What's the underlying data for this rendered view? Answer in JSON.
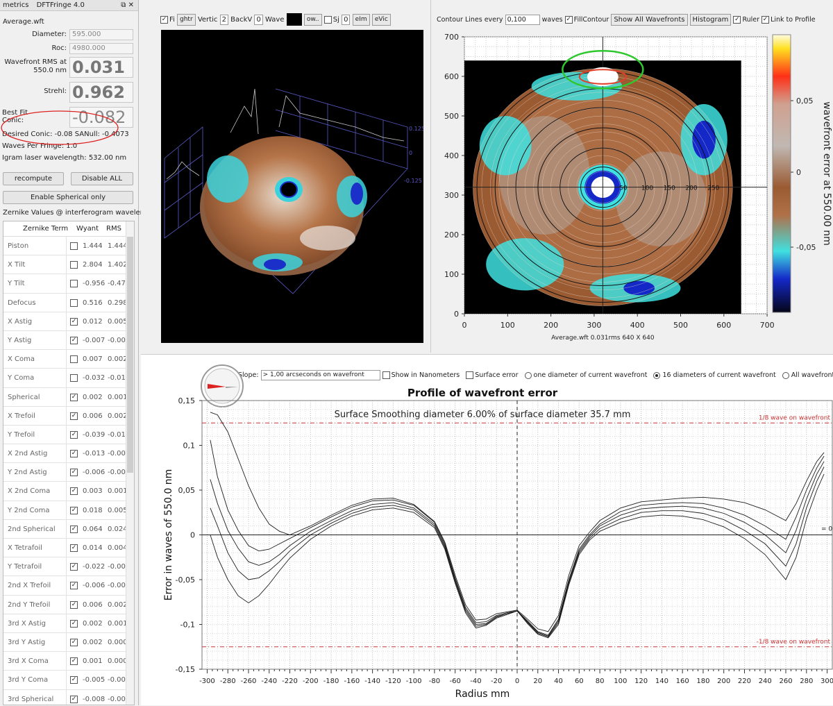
{
  "left": {
    "tab_metrics": "metrics",
    "app_title": "DFTFringe 4.0",
    "file_name": "Average.wft",
    "diameter_label": "Diameter:",
    "diameter_value": "595.000",
    "roc_label": "Roc:",
    "roc_value": "4980.000",
    "rms_label_1": "Wavefront RMS at",
    "rms_label_2": "550.0 nm",
    "rms_value": "0.031",
    "strehl_label": "Strehl:",
    "strehl_value": "0.962",
    "bestfit_label_1": "Best Fit",
    "bestfit_label_2": "Conic:",
    "bestfit_value": "-0.082",
    "desired_conic": "Desired Conic:  -0.08 SANull:  -0.4073",
    "waves_per_fringe": "Waves Per Fringe:  1.0",
    "laser_wavelength": "Igram laser wavelength: 532.00 nm",
    "recompute_label": "recompute",
    "disable_all_label": "Disable ALL",
    "spherical_only_label": "Enable Spherical only",
    "zernike_caption": "Zernike Values @ interferogram wavelength",
    "table_headers": [
      "Zernike Term",
      "Wyant",
      "RMS"
    ],
    "zernike_rows": [
      {
        "name": "Piston",
        "checked": false,
        "wyant": "1.444",
        "rms": "1.444"
      },
      {
        "name": "X Tilt",
        "checked": false,
        "wyant": "2.804",
        "rms": "1.402"
      },
      {
        "name": "Y Tilt",
        "checked": false,
        "wyant": "-0.956",
        "rms": "-0.47"
      },
      {
        "name": "Defocus",
        "checked": false,
        "wyant": "0.516",
        "rms": "0.298"
      },
      {
        "name": "X Astig",
        "checked": true,
        "wyant": "0.012",
        "rms": "0.005"
      },
      {
        "name": "Y Astig",
        "checked": true,
        "wyant": "-0.007",
        "rms": "-0.00"
      },
      {
        "name": "X Coma",
        "checked": false,
        "wyant": "0.007",
        "rms": "0.002"
      },
      {
        "name": "Y Coma",
        "checked": false,
        "wyant": "-0.032",
        "rms": "-0.01"
      },
      {
        "name": "Spherical",
        "checked": true,
        "wyant": "0.002",
        "rms": "0.001"
      },
      {
        "name": "X Trefoil",
        "checked": true,
        "wyant": "0.006",
        "rms": "0.002"
      },
      {
        "name": "Y Trefoil",
        "checked": true,
        "wyant": "-0.039",
        "rms": "-0.01"
      },
      {
        "name": "X 2nd Astig",
        "checked": true,
        "wyant": "-0.013",
        "rms": "-0.00"
      },
      {
        "name": "Y 2nd Astig",
        "checked": true,
        "wyant": "-0.006",
        "rms": "-0.00"
      },
      {
        "name": "X 2nd Coma",
        "checked": true,
        "wyant": "0.003",
        "rms": "0.001"
      },
      {
        "name": "Y 2nd Coma",
        "checked": true,
        "wyant": "0.018",
        "rms": "0.005"
      },
      {
        "name": "2nd Spherical",
        "checked": true,
        "wyant": "0.064",
        "rms": "0.024"
      },
      {
        "name": "X Tetrafoil",
        "checked": true,
        "wyant": "0.014",
        "rms": "0.004"
      },
      {
        "name": "Y Tetrafoil",
        "checked": true,
        "wyant": "-0.022",
        "rms": "-0.00"
      },
      {
        "name": "2nd X Trefoil",
        "checked": true,
        "wyant": "-0.006",
        "rms": "-0.00"
      },
      {
        "name": "2nd Y Trefoil",
        "checked": true,
        "wyant": "0.006",
        "rms": "0.002"
      },
      {
        "name": "3rd X Astig",
        "checked": true,
        "wyant": "0.002",
        "rms": "0.001"
      },
      {
        "name": "3rd Y Astig",
        "checked": true,
        "wyant": "0.002",
        "rms": "0.000"
      },
      {
        "name": "3rd X Coma",
        "checked": true,
        "wyant": "0.001",
        "rms": "0.000"
      },
      {
        "name": "3rd Y Coma",
        "checked": true,
        "wyant": "-0.005",
        "rms": "-0.00"
      },
      {
        "name": "3rd Spherical",
        "checked": true,
        "wyant": "-0.008",
        "rms": "-0.00"
      }
    ]
  },
  "view3d": {
    "toolbar": {
      "fill_label": "Fi",
      "height_btn": "ghtr",
      "vert_label": "Vertic",
      "vert_value": "2",
      "back_label": "BackV",
      "back_value": "0",
      "wave_label": "Wave",
      "color_hex": "#000000",
      "ow_btn": "ow..",
      "sp_label": "Sj",
      "sp_value": "0",
      "elm_btn": "eIm",
      "evic_btn": "eVic"
    },
    "axis_top": "0.125",
    "axis_mid": "0",
    "axis_bottom": "-0.125"
  },
  "contour": {
    "toolbar": {
      "contour_label": "Contour Lines every",
      "contour_value": "0,100",
      "waves_label": "waves",
      "fill_contour_label": "FillContour",
      "show_all_btn": "Show All Wavefronts",
      "histogram_btn": "Histogram",
      "ruler_label": "Ruler",
      "link_profile_label": "Link to Profile"
    },
    "y_ticks": [
      "700",
      "600",
      "500",
      "400",
      "300",
      "200",
      "100",
      "0"
    ],
    "x_ticks": [
      "0",
      "100",
      "200",
      "300",
      "400",
      "500",
      "600",
      "700"
    ],
    "ruler_ticks": [
      "50",
      "100",
      "150",
      "200",
      "250"
    ],
    "caption": "Average.wft  0.031rms 640 X 640",
    "colorbar_ticks": [
      "0,05",
      "0",
      "-0,05"
    ],
    "colorbar_label": "wavefront error at 550.00 nm",
    "colors": {
      "brown": "#9a5a32",
      "cyan": "#40e0e0",
      "blue": "#1428c8",
      "gray": "#b4aaa4"
    }
  },
  "profile": {
    "toolbar": {
      "slope_label": "Slope:",
      "slope_value": "> 1,00 arcseconds on wavefront",
      "show_nm_label": "Show in Nanometers",
      "surface_error_label": "Surface error",
      "radio_one": "one diameter of current wavefront",
      "radio_sixteen": "16 diameters of current wavefront",
      "radio_all": "All wavefronts",
      "selected": "sixteen"
    },
    "ref_line_top": "1/8 wave on wavefront",
    "ref_line_bottom": "-1/8 wave on wavefront",
    "zero_marker": "= 0"
  },
  "chart_data": {
    "type": "line",
    "title": "Profile of wavefront error",
    "subtitle": "Surface Smoothing diameter   6.00% of surface diameter   35.7 mm",
    "xlabel": "Radius mm",
    "ylabel": "Error in waves of  550.0 nm",
    "xlim": [
      -305,
      305
    ],
    "ylim": [
      -0.15,
      0.15
    ],
    "x_ticks": [
      "-300",
      "-280",
      "-260",
      "-240",
      "-220",
      "-200",
      "-180",
      "-160",
      "-140",
      "-120",
      "-100",
      "-80",
      "-60",
      "-40",
      "-20",
      "0",
      "20",
      "40",
      "60",
      "80",
      "100",
      "120",
      "140",
      "160",
      "180",
      "200",
      "220",
      "240",
      "260",
      "280",
      "300"
    ],
    "y_ticks": [
      "0,15",
      "0,1",
      "0,05",
      "0",
      "-0,05",
      "-0,1",
      "-0,15"
    ],
    "reference_lines": [
      0.125,
      -0.125
    ],
    "grid": true,
    "x": [
      -297,
      -290,
      -280,
      -270,
      -260,
      -250,
      -240,
      -230,
      -220,
      -200,
      -180,
      -160,
      -140,
      -120,
      -100,
      -80,
      -70,
      -60,
      -50,
      -40,
      -30,
      -20,
      -10,
      0,
      10,
      20,
      30,
      40,
      50,
      60,
      70,
      80,
      100,
      120,
      140,
      160,
      180,
      200,
      220,
      240,
      260,
      270,
      280,
      290,
      297
    ],
    "series": [
      {
        "values": [
          0.137,
          0.134,
          0.115,
          0.085,
          0.055,
          0.03,
          0.012,
          0.004,
          0.0,
          0.01,
          0.022,
          0.033,
          0.04,
          0.041,
          0.034,
          0.015,
          -0.008,
          -0.045,
          -0.078,
          -0.095,
          -0.094,
          -0.088,
          -0.086,
          -0.084,
          -0.094,
          -0.105,
          -0.108,
          -0.09,
          -0.045,
          -0.012,
          0.003,
          0.016,
          0.03,
          0.037,
          0.039,
          0.041,
          0.042,
          0.04,
          0.036,
          0.028,
          0.016,
          0.035,
          0.06,
          0.082,
          0.092
        ]
      },
      {
        "values": [
          0.106,
          0.065,
          0.028,
          0.005,
          -0.012,
          -0.018,
          -0.016,
          -0.01,
          -0.004,
          0.008,
          0.02,
          0.031,
          0.038,
          0.039,
          0.033,
          0.014,
          -0.01,
          -0.048,
          -0.081,
          -0.098,
          -0.097,
          -0.09,
          -0.087,
          -0.085,
          -0.096,
          -0.108,
          -0.112,
          -0.094,
          -0.05,
          -0.016,
          0.0,
          0.012,
          0.026,
          0.033,
          0.035,
          0.036,
          0.035,
          0.03,
          0.022,
          0.01,
          -0.005,
          0.02,
          0.05,
          0.075,
          0.088
        ]
      },
      {
        "values": [
          0.062,
          0.035,
          0.005,
          -0.015,
          -0.03,
          -0.034,
          -0.03,
          -0.022,
          -0.012,
          0.004,
          0.016,
          0.027,
          0.034,
          0.036,
          0.03,
          0.012,
          -0.012,
          -0.05,
          -0.083,
          -0.1,
          -0.099,
          -0.091,
          -0.088,
          -0.085,
          -0.097,
          -0.109,
          -0.113,
          -0.096,
          -0.052,
          -0.018,
          -0.002,
          0.01,
          0.022,
          0.029,
          0.031,
          0.032,
          0.03,
          0.024,
          0.014,
          0.0,
          -0.02,
          0.005,
          0.04,
          0.068,
          0.082
        ]
      },
      {
        "values": [
          0.03,
          0.01,
          -0.02,
          -0.04,
          -0.05,
          -0.048,
          -0.04,
          -0.03,
          -0.018,
          0.0,
          0.013,
          0.024,
          0.031,
          0.033,
          0.028,
          0.01,
          -0.014,
          -0.052,
          -0.085,
          -0.102,
          -0.1,
          -0.092,
          -0.088,
          -0.085,
          -0.098,
          -0.11,
          -0.114,
          -0.098,
          -0.054,
          -0.02,
          -0.004,
          0.007,
          0.018,
          0.025,
          0.027,
          0.027,
          0.024,
          0.017,
          0.005,
          -0.01,
          -0.035,
          -0.01,
          0.03,
          0.06,
          0.076
        ]
      },
      {
        "values": [
          0.0,
          -0.025,
          -0.05,
          -0.068,
          -0.076,
          -0.068,
          -0.055,
          -0.04,
          -0.026,
          -0.005,
          0.01,
          0.021,
          0.028,
          0.03,
          0.025,
          0.008,
          -0.016,
          -0.054,
          -0.087,
          -0.104,
          -0.101,
          -0.093,
          -0.089,
          -0.085,
          -0.099,
          -0.111,
          -0.115,
          -0.1,
          -0.056,
          -0.022,
          -0.006,
          0.004,
          0.014,
          0.02,
          0.022,
          0.021,
          0.017,
          0.009,
          -0.004,
          -0.022,
          -0.05,
          -0.025,
          0.018,
          0.05,
          0.068
        ]
      }
    ]
  }
}
